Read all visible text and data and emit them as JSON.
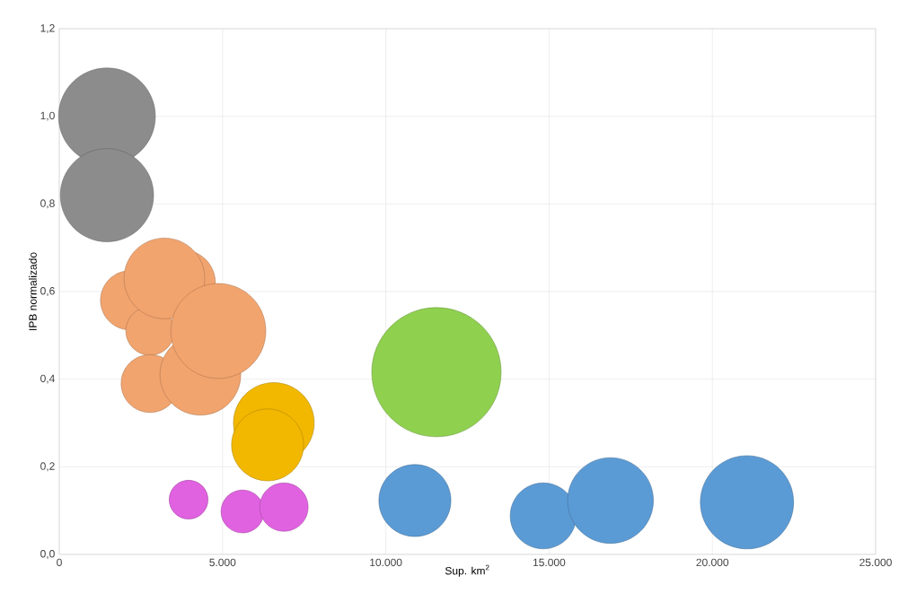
{
  "chart_data": {
    "type": "bubble",
    "xlabel": "Sup. km$^{2}$",
    "ylabel": "IPB normalizado",
    "grid": true,
    "xlim": [
      0,
      25000
    ],
    "ylim": [
      0,
      1.2
    ],
    "xticks": [
      0,
      {
        "value": 5000,
        "label": "5.000"
      },
      {
        "value": 10000,
        "label": "10.000"
      },
      {
        "value": 15000,
        "label": "15.000"
      },
      {
        "value": 20000,
        "label": "20.000"
      },
      {
        "value": 25000,
        "label": "25.000"
      }
    ],
    "yticks": [
      {
        "value": 0,
        "label": "0,0"
      },
      {
        "value": 0.2,
        "label": "0,2"
      },
      {
        "value": 0.4,
        "label": "0,4"
      },
      {
        "value": 0.6,
        "label": "0,6"
      },
      {
        "value": 0.8,
        "label": "0,8"
      },
      {
        "value": 1.0,
        "label": "1,0"
      },
      {
        "value": 1.2,
        "label": "1,2"
      }
    ],
    "series": [
      {
        "color": "#8c8c8c",
        "x": [
          1460,
          1460
        ],
        "values": [
          1.0,
          0.82
        ],
        "sizes": [
          0.56,
          0.52
        ]
      },
      {
        "color": "#f2a46e",
        "x": [
          3770,
          2170,
          2780,
          2780,
          4320,
          3220,
          4870
        ],
        "values": [
          0.62,
          0.58,
          0.51,
          0.39,
          0.41,
          0.63,
          0.51
        ],
        "sizes": [
          0.26,
          0.21,
          0.14,
          0.2,
          0.39,
          0.39,
          0.54
        ]
      },
      {
        "color": "#f2b800",
        "x": [
          6570,
          6380
        ],
        "values": [
          0.3,
          0.25
        ],
        "sizes": [
          0.39,
          0.31
        ]
      },
      {
        "color": "#e062e0",
        "x": [
          3960,
          5610,
          6880
        ],
        "values": [
          0.125,
          0.098,
          0.108
        ],
        "sizes": [
          0.09,
          0.11,
          0.14
        ]
      },
      {
        "color": "#8fd14f",
        "x": [
          11550
        ],
        "values": [
          0.416
        ],
        "sizes": [
          1
        ]
      },
      {
        "color": "#5b9bd5",
        "x": [
          10890,
          14820,
          16880,
          21060
        ],
        "values": [
          0.123,
          0.088,
          0.123,
          0.119
        ],
        "sizes": [
          0.31,
          0.26,
          0.44,
          0.52
        ]
      }
    ]
  }
}
